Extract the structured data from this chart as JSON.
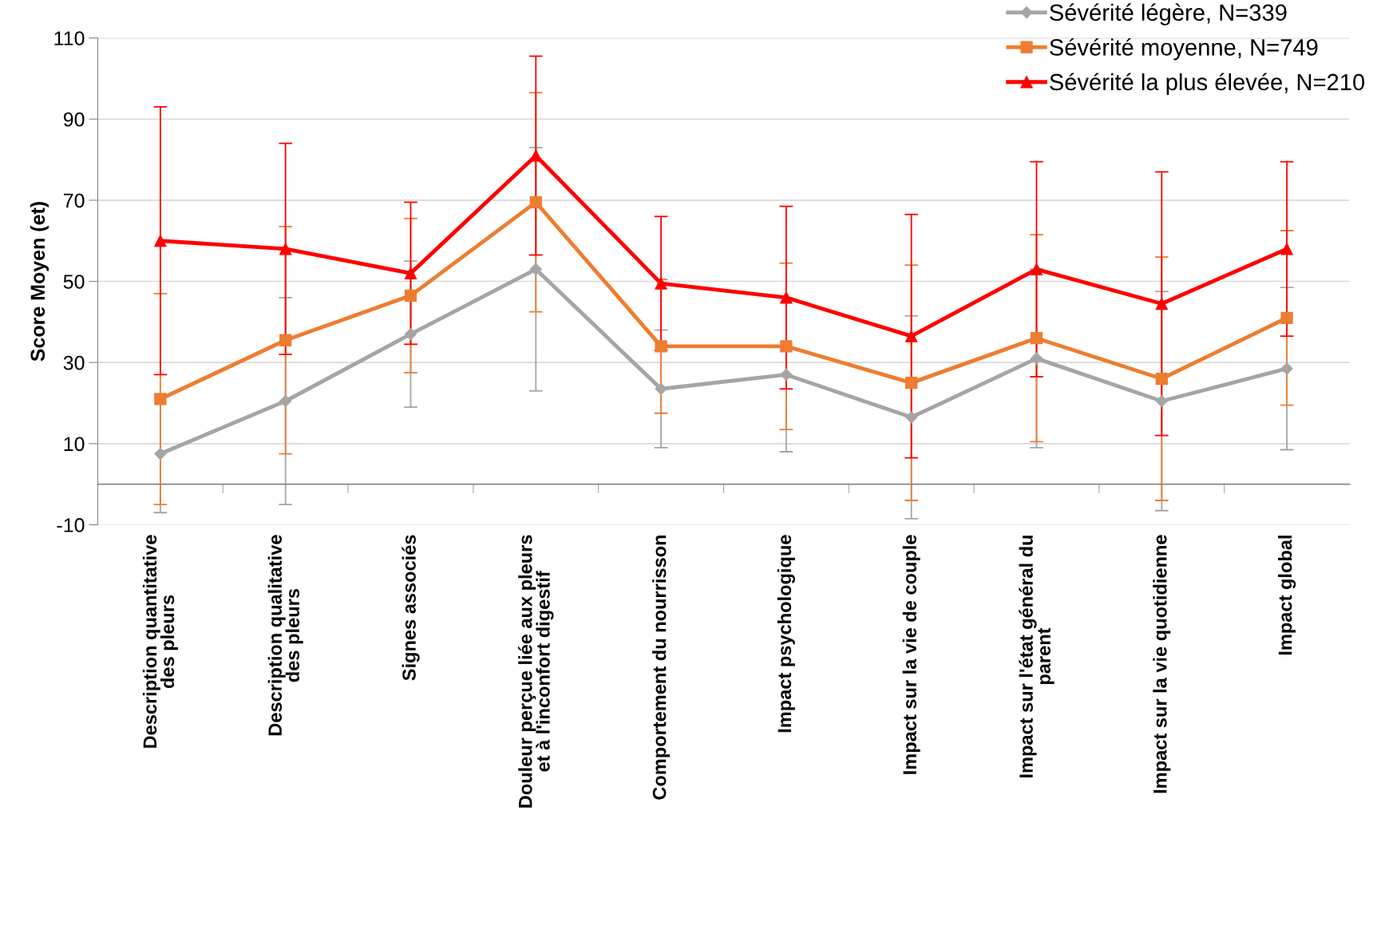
{
  "chart_data": {
    "type": "line",
    "ylabel": "Score Moyen (et)",
    "categories": [
      "Description quantitative\ndes pleurs",
      "Description qualitative\ndes pleurs",
      "Signes associés",
      "Douleur perçue liée aux pleurs\net à l'inconfort digestif",
      "Comportement du nourrisson",
      "Impact psychologique",
      "Impact sur la vie de couple",
      "Impact sur l'état général du\nparent",
      "Impact sur la vie quotidienne",
      "Impact global"
    ],
    "series": [
      {
        "name": "Sévérité légère, N=339",
        "color": "#a5a5a5",
        "marker": "diamond",
        "values": [
          7.5,
          20.5,
          37,
          53,
          23.5,
          27,
          16.5,
          31,
          20.5,
          28.5
        ],
        "errors": [
          14.5,
          25.5,
          18,
          30,
          14.5,
          19,
          25,
          22,
          27,
          20
        ]
      },
      {
        "name": "Sévérité moyenne, N=749",
        "color": "#ed7d31",
        "marker": "square",
        "values": [
          21,
          35.5,
          46.5,
          69.5,
          34,
          34,
          25,
          36,
          26,
          41
        ],
        "errors": [
          26,
          28,
          19,
          27,
          16.5,
          20.5,
          29,
          25.5,
          30,
          21.5
        ]
      },
      {
        "name": "Sévérité la plus élevée, N=210",
        "color": "#ff0000",
        "marker": "triangle",
        "values": [
          60,
          58,
          52,
          81,
          49.5,
          46,
          36.5,
          53,
          44.5,
          58
        ],
        "errors": [
          33,
          26,
          17.5,
          24.5,
          16.5,
          22.5,
          30,
          26.5,
          32.5,
          21.5
        ]
      }
    ],
    "ylim": [
      -10,
      110
    ],
    "yticks": [
      -10,
      10,
      30,
      50,
      70,
      90,
      110
    ],
    "grid": "y",
    "legend": "top right",
    "line_style": "solid"
  }
}
